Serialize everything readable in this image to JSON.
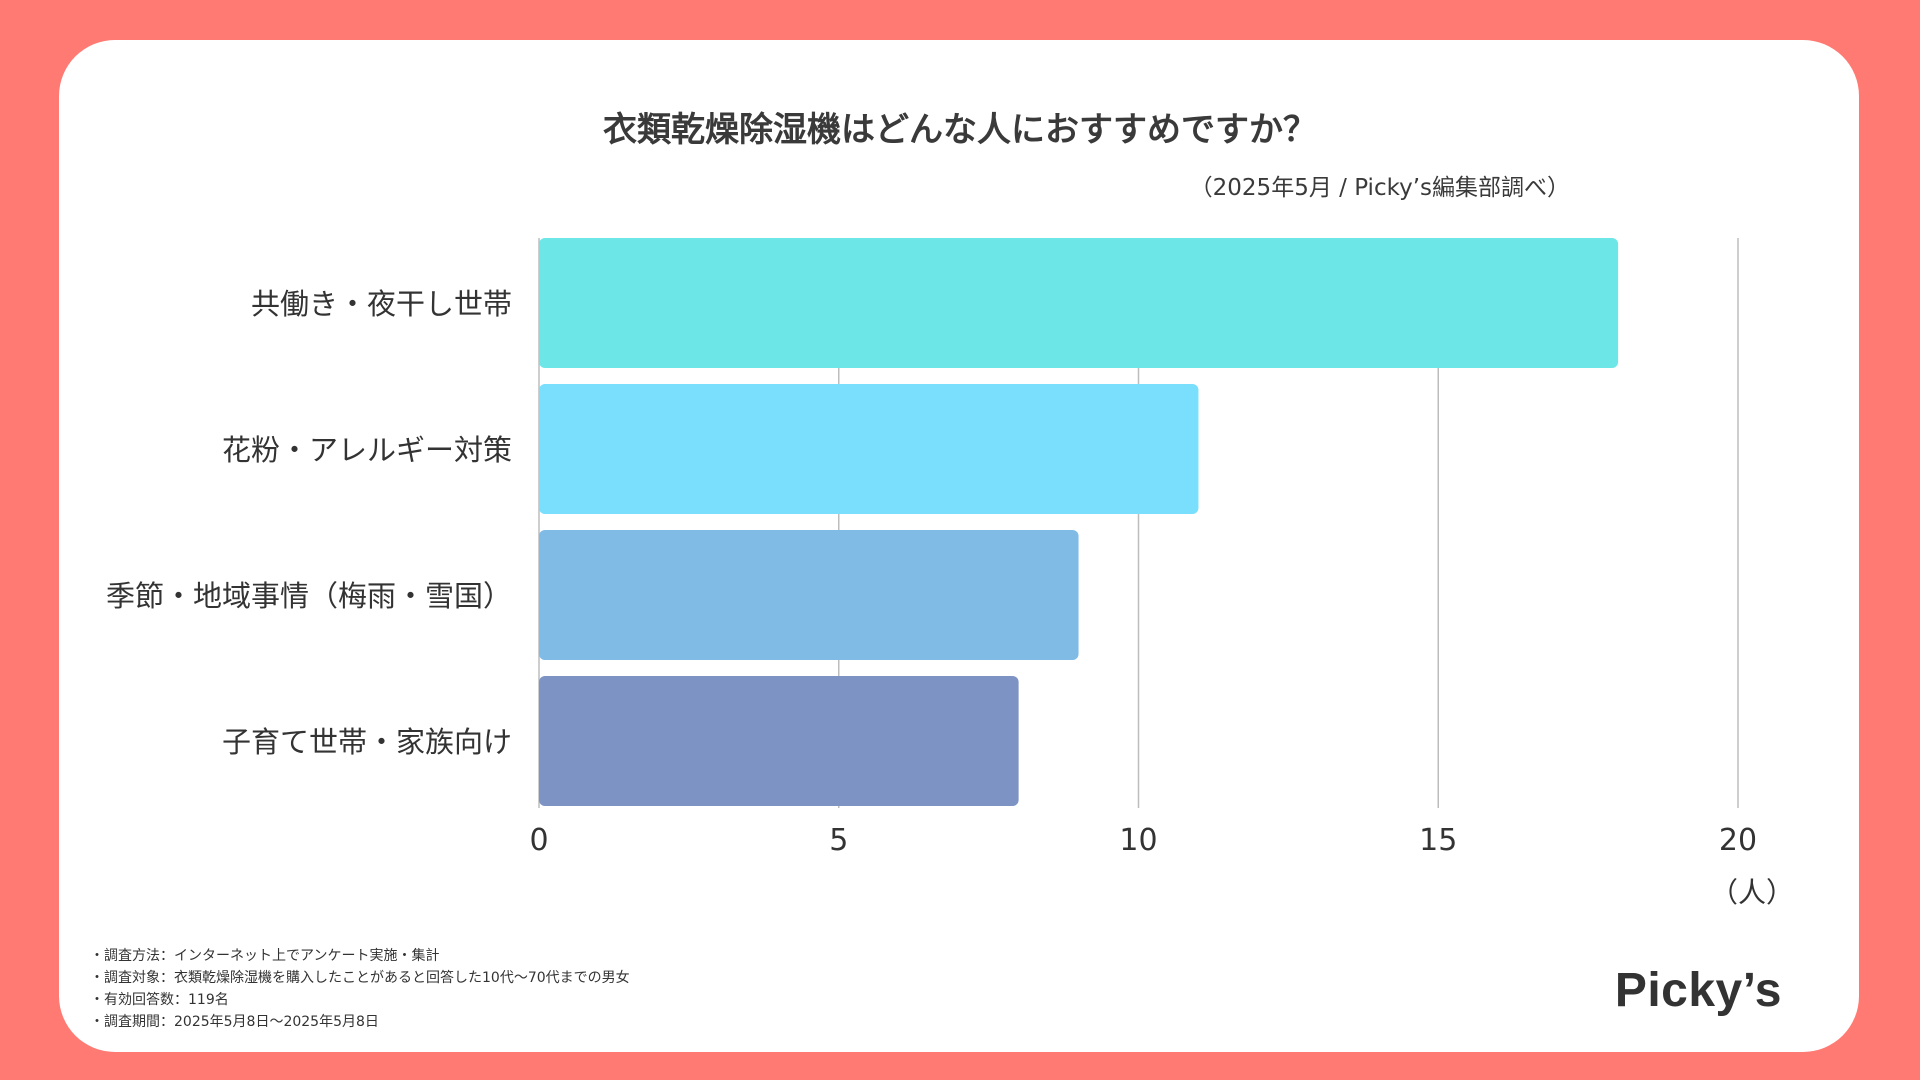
{
  "colors": {
    "background": "#ff7a73",
    "card": "#ffffff",
    "gridline": "#bdbdbd",
    "text": "#333333"
  },
  "chart_data": {
    "type": "bar",
    "orientation": "horizontal",
    "title": "衣類乾燥除湿機はどんな人におすすめですか？",
    "subtitle": "（2025年5月 / Picky’s編集部調べ）",
    "categories": [
      "共働き・夜干し世帯",
      "花粉・アレルギー対策",
      "季節・地域事情（梅雨・雪国）",
      "子育て世帯・家族向け"
    ],
    "values": [
      18,
      11,
      9,
      8
    ],
    "bar_colors": [
      "#6de6e8",
      "#7adffc",
      "#80bbe6",
      "#7c93c4"
    ],
    "xlim": [
      0,
      20
    ],
    "xticks": [
      0,
      5,
      10,
      15,
      20
    ],
    "xlabel": "（人）",
    "ylabel": "",
    "grid": true,
    "legend": "none"
  },
  "notes": [
    "・調査方法：インターネット上でアンケート実施・集計",
    "・調査対象：衣類乾燥除湿機を購入したことがあると回答した10代〜70代までの男女",
    "・有効回答数：119名",
    "・調査期間：2025年5月8日〜2025年5月8日"
  ],
  "logo": "Picky’s"
}
